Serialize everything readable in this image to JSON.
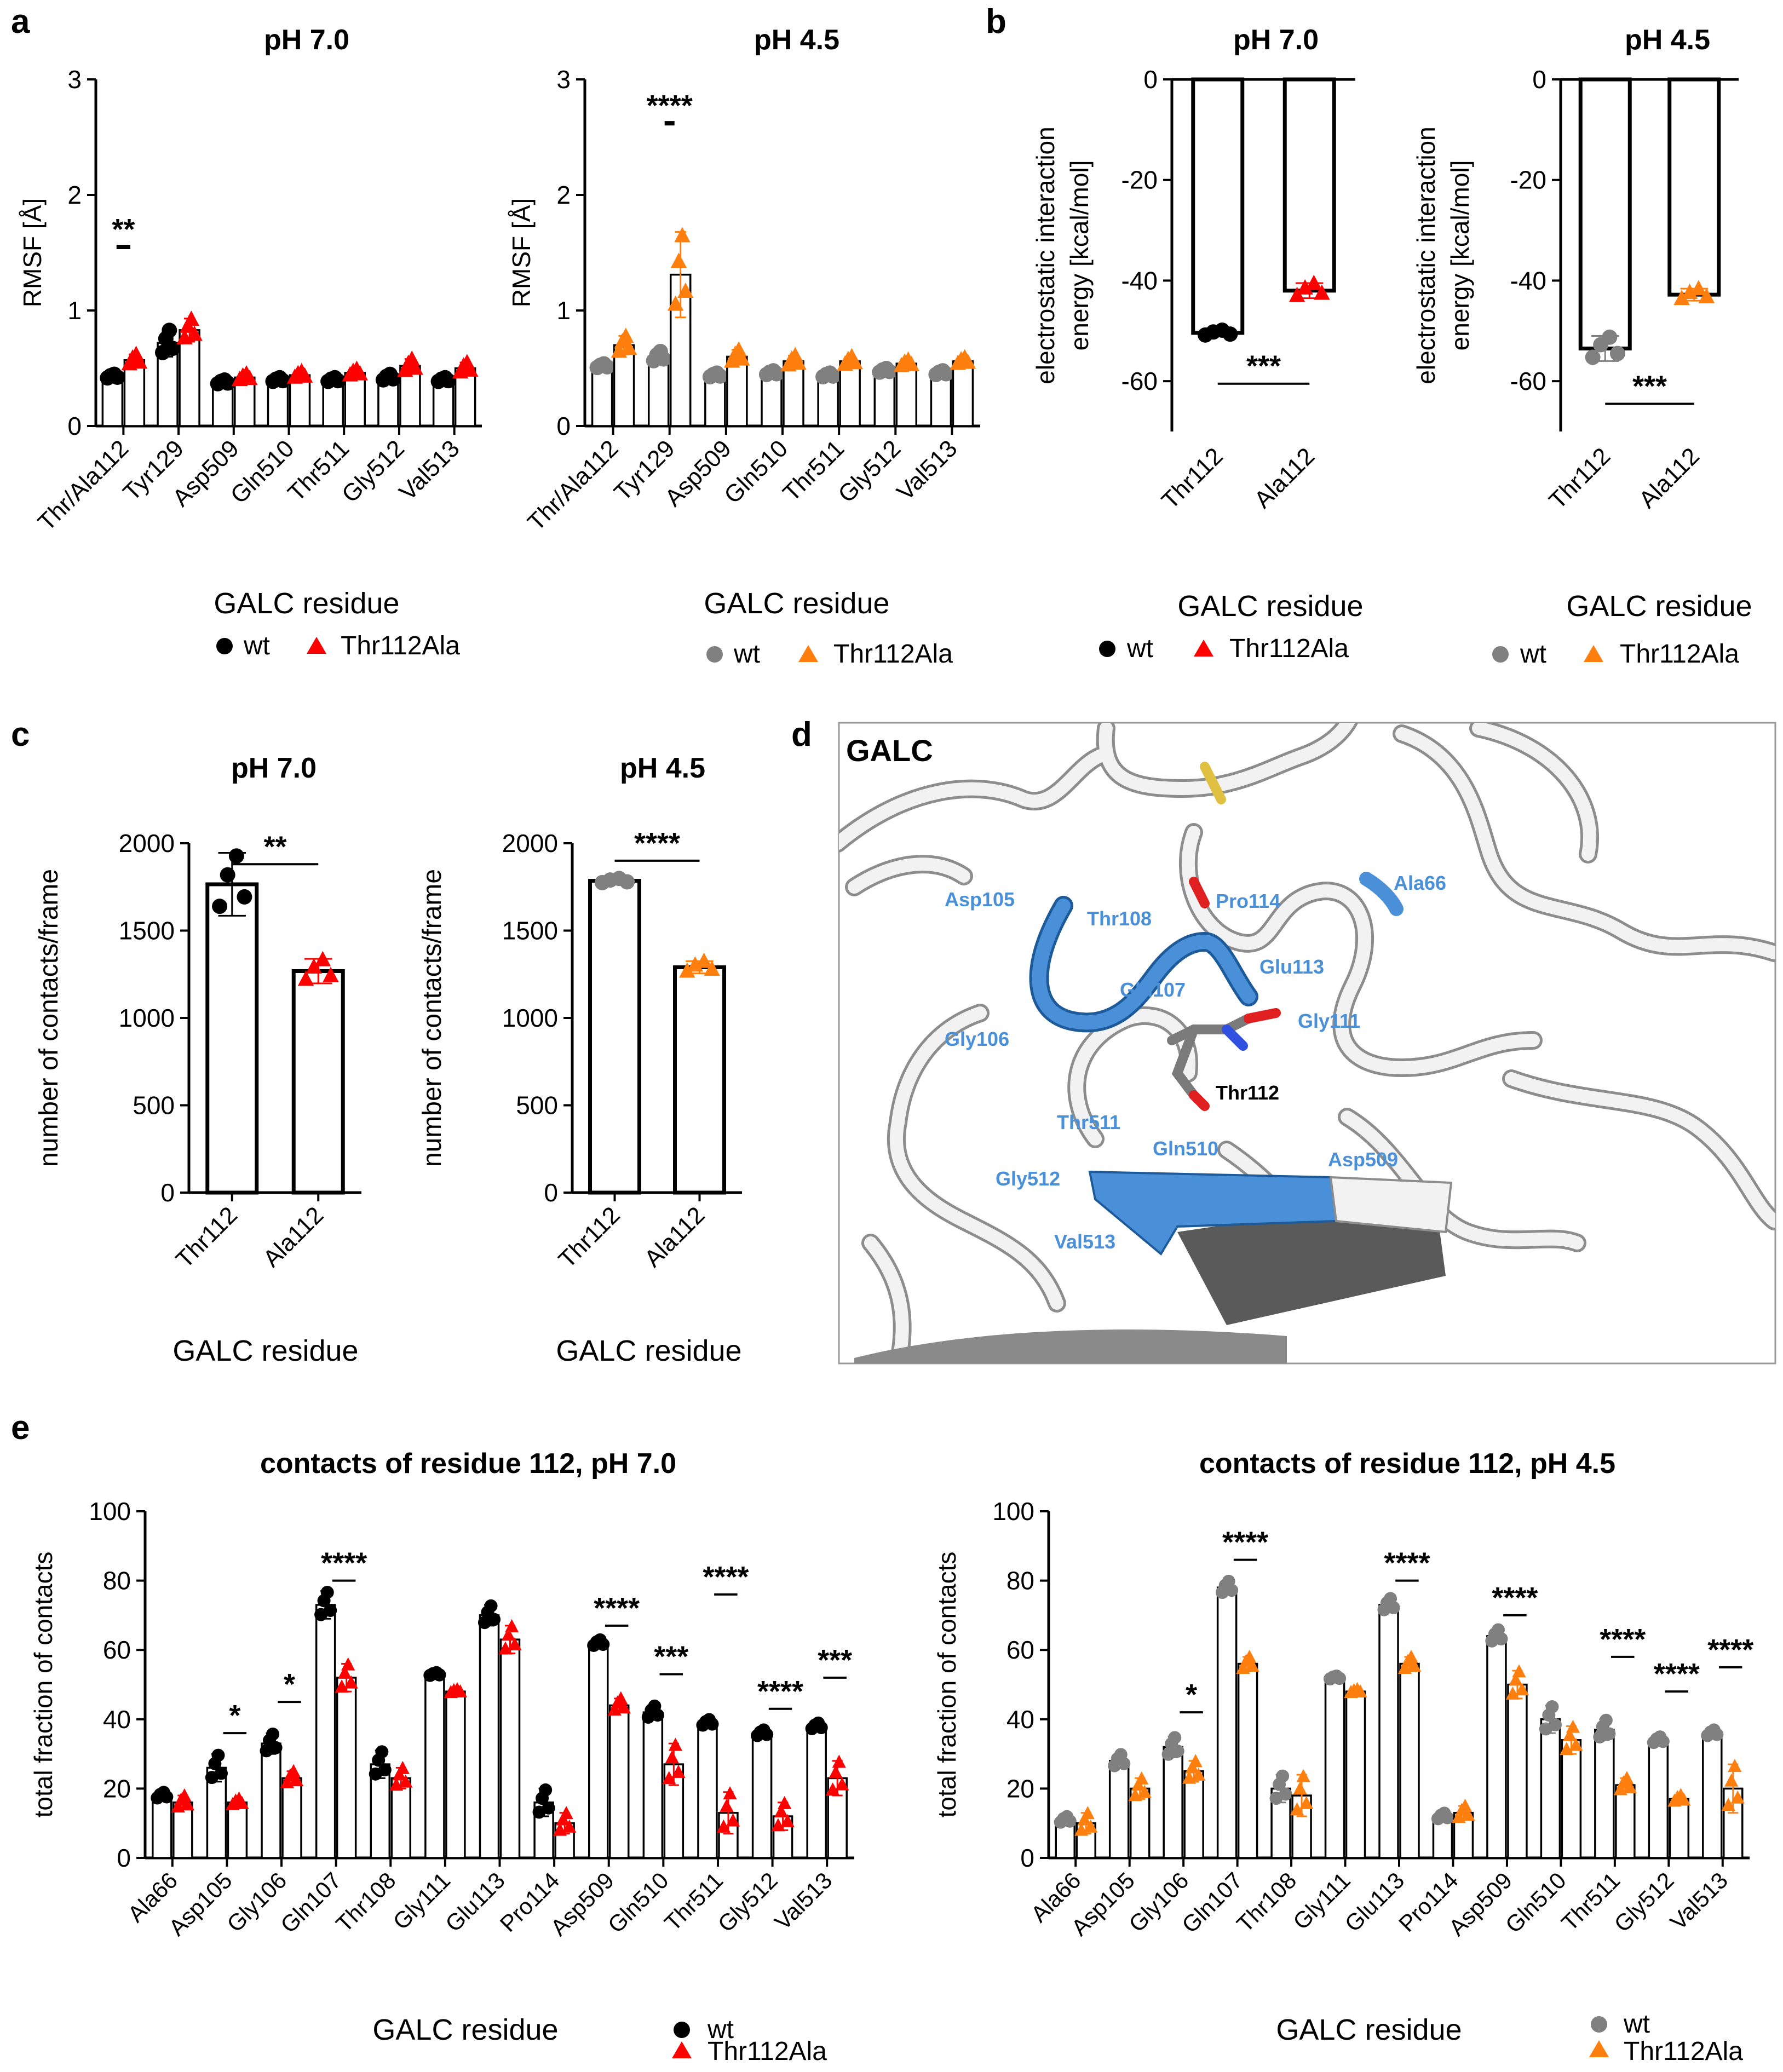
{
  "panel_labels": {
    "a": "a",
    "b": "b",
    "c": "c",
    "d": "d",
    "e": "e"
  },
  "legend": {
    "wt": "wt",
    "mut": "Thr112Ala"
  },
  "colors": {
    "wt7": "#000000",
    "mut7": "#ff0000",
    "wt45": "#808080",
    "mut45": "#ff7f0e",
    "sel": "#4a90d9",
    "ribbon": "#f0f0f0",
    "dark": "#505050"
  },
  "structure": {
    "title": "GALC",
    "labels": [
      "Asp105",
      "Thr108",
      "Pro114",
      "Ala66",
      "Glu113",
      "Gln107",
      "Gly111",
      "Gly106",
      "Thr112",
      "Thr511",
      "Gln510",
      "Asp509",
      "Gly512",
      "Val513"
    ]
  },
  "chart_data": [
    {
      "id": "a1",
      "type": "bar",
      "title": "pH 7.0",
      "ylabel": "RMSF [Å]",
      "xlabel": "GALC residue",
      "ylim": [
        0,
        3
      ],
      "yticks": [
        0,
        1,
        2,
        3
      ],
      "categories": [
        "Thr/Ala112",
        "Tyr129",
        "Asp509",
        "Gln510",
        "Thr511",
        "Gly512",
        "Val513"
      ],
      "series": [
        {
          "name": "wt",
          "values": [
            0.43,
            0.72,
            0.38,
            0.4,
            0.4,
            0.42,
            0.4
          ],
          "err": [
            0.02,
            0.12,
            0.02,
            0.02,
            0.02,
            0.03,
            0.02
          ]
        },
        {
          "name": "Thr112Ala",
          "values": [
            0.57,
            0.83,
            0.42,
            0.44,
            0.46,
            0.52,
            0.5
          ],
          "err": [
            0.05,
            0.1,
            0.03,
            0.03,
            0.03,
            0.06,
            0.05
          ]
        }
      ],
      "significance": [
        {
          "category": "Thr/Ala112",
          "label": "**",
          "y": 1.55
        }
      ]
    },
    {
      "id": "a2",
      "type": "bar",
      "title": "pH 4.5",
      "ylabel": "RMSF [Å]",
      "xlabel": "GALC residue",
      "ylim": [
        0,
        3
      ],
      "yticks": [
        0,
        1,
        2,
        3
      ],
      "categories": [
        "Thr/Ala112",
        "Tyr129",
        "Asp509",
        "Gln510",
        "Thr511",
        "Gly512",
        "Val513"
      ],
      "series": [
        {
          "name": "wt",
          "values": [
            0.52,
            0.6,
            0.44,
            0.46,
            0.44,
            0.48,
            0.46
          ],
          "err": [
            0.02,
            0.05,
            0.02,
            0.02,
            0.02,
            0.02,
            0.02
          ]
        },
        {
          "name": "Thr112Ala",
          "values": [
            0.7,
            1.31,
            0.6,
            0.56,
            0.56,
            0.54,
            0.56
          ],
          "err": [
            0.08,
            0.37,
            0.06,
            0.05,
            0.04,
            0.03,
            0.03
          ]
        }
      ],
      "significance": [
        {
          "category": "Tyr129",
          "label": "****",
          "y": 2.62
        }
      ]
    },
    {
      "id": "b1",
      "type": "bar",
      "title": "pH 7.0",
      "ylabel": "electrostatic interaction energy [kcal/mol]",
      "xlabel": "GALC residue",
      "ylim": [
        -70,
        0
      ],
      "yticks": [
        0,
        -20,
        -40,
        -60
      ],
      "categories": [
        "Thr112",
        "Ala112"
      ],
      "series": [
        {
          "name": "bars",
          "values": [
            -50.4,
            -42.0
          ],
          "err": [
            0.6,
            1.5
          ]
        }
      ],
      "significance": [
        {
          "label": "***",
          "y": -60.5
        }
      ]
    },
    {
      "id": "b2",
      "type": "bar",
      "title": "pH 4.5",
      "ylabel": "electrostatic interaction energy [kcal/mol]",
      "xlabel": "GALC residue",
      "ylim": [
        -70,
        0
      ],
      "yticks": [
        0,
        -20,
        -40,
        -60
      ],
      "categories": [
        "Thr112",
        "Ala112"
      ],
      "series": [
        {
          "name": "bars",
          "values": [
            -53.5,
            -42.8
          ],
          "err": [
            2.5,
            1.2
          ]
        }
      ],
      "significance": [
        {
          "label": "***",
          "y": -64.5
        }
      ]
    },
    {
      "id": "c1",
      "type": "bar",
      "title": "pH 7.0",
      "ylabel": "number of contacts/frame",
      "xlabel": "GALC residue",
      "ylim": [
        0,
        2000
      ],
      "yticks": [
        0,
        500,
        1000,
        1500,
        2000
      ],
      "categories": [
        "Thr112",
        "Ala112"
      ],
      "series": [
        {
          "name": "bars",
          "values": [
            1765,
            1268
          ],
          "err": [
            180,
            70
          ]
        }
      ],
      "significance": [
        {
          "label": "**",
          "y": 1880
        }
      ]
    },
    {
      "id": "c2",
      "type": "bar",
      "title": "pH 4.5",
      "ylabel": "number of contacts/frame",
      "xlabel": "GALC residue",
      "ylim": [
        0,
        2000
      ],
      "yticks": [
        0,
        500,
        1000,
        1500,
        2000
      ],
      "categories": [
        "Thr112",
        "Ala112"
      ],
      "series": [
        {
          "name": "bars",
          "values": [
            1785,
            1290
          ],
          "err": [
            15,
            35
          ]
        }
      ],
      "significance": [
        {
          "label": "****",
          "y": 1900
        }
      ]
    },
    {
      "id": "e1",
      "type": "bar",
      "title": "contacts of residue 112, pH 7.0",
      "ylabel": "total fraction of contacts",
      "xlabel": "GALC residue",
      "ylim": [
        0,
        100
      ],
      "yticks": [
        0,
        20,
        40,
        60,
        80,
        100
      ],
      "categories": [
        "Ala66",
        "Asp105",
        "Gly106",
        "Gln107",
        "Thr108",
        "Gly111",
        "Glu113",
        "Pro114",
        "Asp509",
        "Gln510",
        "Thr511",
        "Gly512",
        "Val513"
      ],
      "series": [
        {
          "name": "wt",
          "values": [
            18,
            26,
            33,
            73,
            27,
            53,
            70,
            16,
            62,
            42,
            39,
            36,
            38
          ],
          "err": [
            1,
            4,
            3,
            4,
            4,
            0.5,
            3,
            4,
            1,
            2,
            1,
            1,
            1
          ]
        },
        {
          "name": "Thr112Ala",
          "values": [
            16,
            16,
            23,
            52,
            23,
            48,
            63,
            10,
            44,
            27,
            13,
            12,
            23
          ],
          "err": [
            2,
            1,
            2,
            4,
            3,
            0.5,
            4,
            3,
            2,
            6,
            6,
            4,
            5
          ]
        }
      ],
      "significance": [
        {
          "category": "Asp105",
          "label": "*",
          "y": 36
        },
        {
          "category": "Gly106",
          "label": "*",
          "y": 45
        },
        {
          "category": "Gln107",
          "label": "****",
          "y": 80
        },
        {
          "category": "Asp509",
          "label": "****",
          "y": 67
        },
        {
          "category": "Gln510",
          "label": "***",
          "y": 53
        },
        {
          "category": "Thr511",
          "label": "****",
          "y": 76
        },
        {
          "category": "Gly512",
          "label": "****",
          "y": 43
        },
        {
          "category": "Val513",
          "label": "***",
          "y": 52
        }
      ]
    },
    {
      "id": "e2",
      "type": "bar",
      "title": "contacts of residue 112, pH 4.5",
      "ylabel": "total fraction of contacts",
      "xlabel": "GALC residue",
      "ylim": [
        0,
        100
      ],
      "yticks": [
        0,
        20,
        40,
        60,
        80,
        100
      ],
      "categories": [
        "Ala66",
        "Asp105",
        "Gly106",
        "Gln107",
        "Thr108",
        "Gly111",
        "Glu113",
        "Pro114",
        "Asp509",
        "Gln510",
        "Thr511",
        "Gly512",
        "Val513"
      ],
      "series": [
        {
          "name": "wt",
          "values": [
            11,
            28,
            32,
            78,
            20,
            52,
            73,
            12,
            64,
            40,
            37,
            34,
            36
          ],
          "err": [
            1,
            2,
            3,
            2,
            4,
            0.5,
            2,
            1,
            2,
            4,
            3,
            1,
            1
          ]
        },
        {
          "name": "Thr112Ala",
          "values": [
            10,
            20,
            25,
            56,
            18,
            48,
            56,
            13,
            50,
            34,
            21,
            17,
            20
          ],
          "err": [
            3,
            3,
            3,
            2,
            6,
            0.5,
            2,
            2,
            4,
            4,
            2,
            1,
            7
          ]
        }
      ],
      "significance": [
        {
          "category": "Gly106",
          "label": "*",
          "y": 42
        },
        {
          "category": "Gln107",
          "label": "****",
          "y": 86
        },
        {
          "category": "Glu113",
          "label": "****",
          "y": 80
        },
        {
          "category": "Asp509",
          "label": "****",
          "y": 70
        },
        {
          "category": "Thr511",
          "label": "****",
          "y": 58
        },
        {
          "category": "Gly512",
          "label": "****",
          "y": 48
        },
        {
          "category": "Val513",
          "label": "****",
          "y": 55
        }
      ]
    }
  ]
}
